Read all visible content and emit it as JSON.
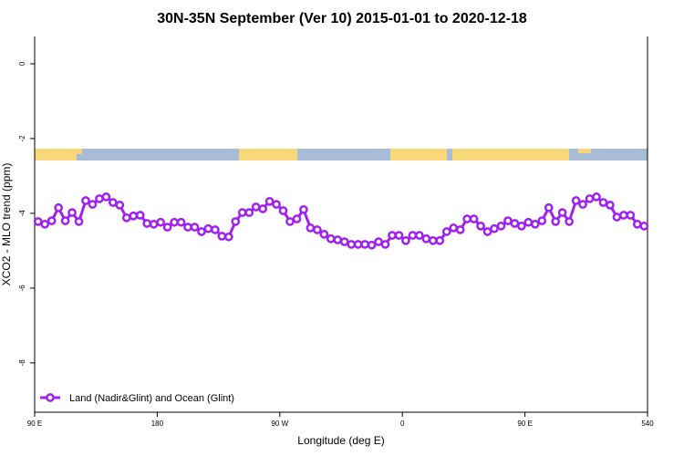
{
  "chart_data": {
    "type": "line",
    "title": "30N-35N September (Ver 10)   2015-01-01 to 2020-12-18",
    "x_label": "Longitude (deg E)",
    "y_label": "XCO2 - MLO trend (ppm)",
    "x": [
      92.5,
      97.5,
      102.5,
      107.5,
      112.5,
      117.5,
      122.5,
      127.5,
      132.5,
      137.5,
      142.5,
      147.5,
      152.5,
      157.5,
      162.5,
      167.5,
      172.5,
      177.5,
      182.5,
      187.5,
      192.5,
      197.5,
      202.5,
      207.5,
      212.5,
      217.5,
      222.5,
      227.5,
      232.5,
      237.5,
      242.5,
      247.5,
      252.5,
      257.5,
      262.5,
      267.5,
      272.5,
      277.5,
      282.5,
      287.5,
      292.5,
      297.5,
      302.5,
      307.5,
      312.5,
      317.5,
      322.5,
      327.5,
      332.5,
      337.5,
      342.5,
      347.5,
      352.5,
      357.5,
      362.5,
      367.5,
      372.5,
      377.5,
      382.5,
      387.5,
      392.5,
      397.5,
      402.5,
      407.5,
      412.5,
      417.5,
      422.5,
      427.5,
      432.5,
      437.5,
      442.5,
      447.5,
      452.5,
      457.5,
      462.5,
      467.5,
      472.5,
      477.5,
      482.5,
      487.5,
      492.5,
      497.5,
      502.5,
      507.5,
      512.5,
      517.5,
      522.5,
      527.5,
      532.5,
      537.5
    ],
    "series": [
      {
        "name": "Land (Nadir&Glint) and Ocean (Glint)",
        "color": "#a020f0",
        "values": [
          -4.22,
          -4.29,
          -4.2,
          -3.85,
          -4.2,
          -3.98,
          -4.22,
          -3.66,
          -3.76,
          -3.61,
          -3.56,
          -3.71,
          -3.78,
          -4.12,
          -4.07,
          -4.05,
          -4.27,
          -4.29,
          -4.24,
          -4.37,
          -4.24,
          -4.24,
          -4.37,
          -4.37,
          -4.49,
          -4.41,
          -4.44,
          -4.61,
          -4.63,
          -4.22,
          -3.98,
          -3.98,
          -3.83,
          -3.88,
          -3.68,
          -3.76,
          -3.93,
          -4.22,
          -4.15,
          -3.9,
          -4.39,
          -4.44,
          -4.56,
          -4.68,
          -4.71,
          -4.76,
          -4.83,
          -4.83,
          -4.83,
          -4.85,
          -4.76,
          -4.83,
          -4.59,
          -4.59,
          -4.73,
          -4.59,
          -4.59,
          -4.68,
          -4.73,
          -4.73,
          -4.49,
          -4.39,
          -4.44,
          -4.15,
          -4.15,
          -4.34,
          -4.49,
          -4.41,
          -4.34,
          -4.2,
          -4.27,
          -4.34,
          -4.24,
          -4.29,
          -4.2,
          -3.85,
          -4.22,
          -3.98,
          -4.22,
          -3.66,
          -3.76,
          -3.61,
          -3.56,
          -3.71,
          -3.78,
          -4.1,
          -4.05,
          -4.05,
          -4.29,
          -4.34
        ]
      }
    ],
    "xlim": [
      90,
      540
    ],
    "xticks": [
      {
        "value": 90,
        "label": "90 E"
      },
      180,
      {
        "value": 270,
        "label": "90 W"
      },
      {
        "value": 360,
        "label": "0"
      },
      {
        "value": 450,
        "label": "90 E"
      },
      540
    ],
    "ylim": [
      -9.32,
      0.73
    ],
    "yticks": [
      0,
      -2,
      -4,
      -6,
      -8
    ],
    "legend": "bottom-left"
  }
}
